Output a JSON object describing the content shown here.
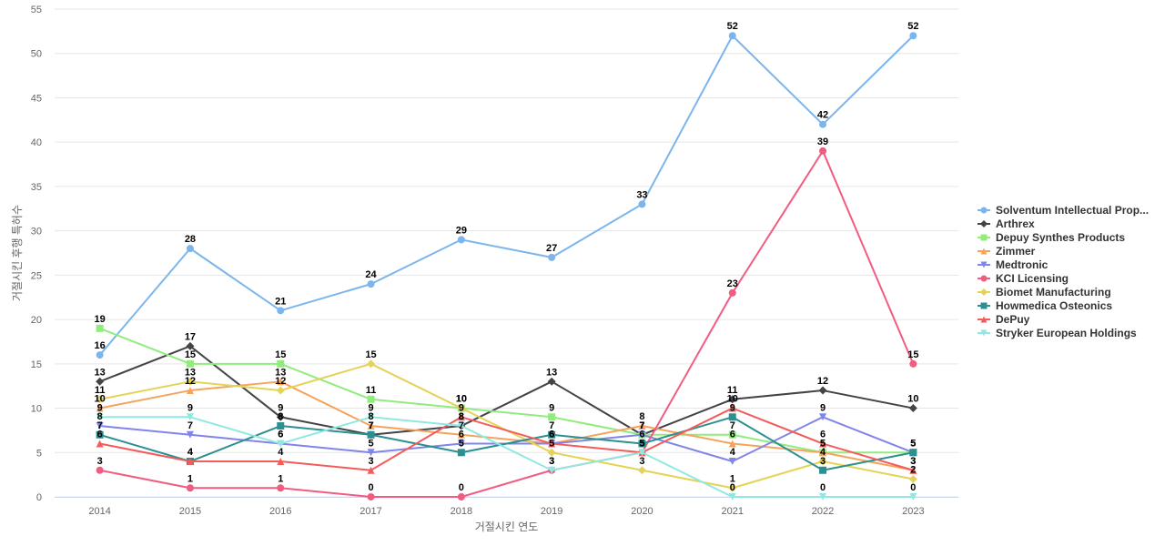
{
  "chart_data": {
    "type": "line",
    "xlabel": "거절시킨 연도",
    "ylabel": "거절시킨 후행 특허수",
    "categories": [
      "2014",
      "2015",
      "2016",
      "2017",
      "2018",
      "2019",
      "2020",
      "2021",
      "2022",
      "2023"
    ],
    "ylim": [
      0,
      55
    ],
    "yticks": [
      0,
      5,
      10,
      15,
      20,
      25,
      30,
      35,
      40,
      45,
      50,
      55
    ],
    "grid": true,
    "legend_position": "right",
    "series": [
      {
        "name": "Solventum Intellectual Prop...",
        "color": "#7cb5ec",
        "marker": "circle",
        "values": [
          16,
          28,
          21,
          24,
          29,
          27,
          33,
          52,
          42,
          52
        ]
      },
      {
        "name": "Arthrex",
        "color": "#434348",
        "marker": "diamond",
        "values": [
          13,
          17,
          9,
          7,
          8,
          13,
          7,
          11,
          12,
          10
        ]
      },
      {
        "name": "Depuy Synthes Products",
        "color": "#90ed7d",
        "marker": "square",
        "values": [
          19,
          15,
          15,
          11,
          10,
          9,
          7,
          7,
          5,
          5
        ]
      },
      {
        "name": "Zimmer",
        "color": "#f7a35c",
        "marker": "triangle",
        "values": [
          10,
          12,
          13,
          8,
          7,
          6,
          8,
          6,
          5,
          3
        ]
      },
      {
        "name": "Medtronic",
        "color": "#8085e9",
        "marker": "triangle-down",
        "values": [
          8,
          7,
          6,
          5,
          6,
          6,
          7,
          4,
          9,
          5
        ]
      },
      {
        "name": "KCI Licensing",
        "color": "#f15c80",
        "marker": "circle",
        "values": [
          3,
          1,
          1,
          0,
          0,
          3,
          5,
          23,
          39,
          15
        ]
      },
      {
        "name": "Biomet Manufacturing",
        "color": "#e4d354",
        "marker": "diamond",
        "values": [
          11,
          13,
          12,
          15,
          10,
          5,
          3,
          1,
          4,
          2
        ]
      },
      {
        "name": "Howmedica Osteonics",
        "color": "#2b908f",
        "marker": "square",
        "values": [
          7,
          4,
          8,
          7,
          5,
          7,
          6,
          9,
          3,
          5
        ]
      },
      {
        "name": "DePuy",
        "color": "#f45b5b",
        "marker": "triangle",
        "values": [
          6,
          4,
          4,
          3,
          9,
          6,
          5,
          10,
          6,
          3
        ]
      },
      {
        "name": "Stryker European Holdings",
        "color": "#91e8e1",
        "marker": "triangle-down",
        "values": [
          9,
          9,
          6,
          9,
          8,
          3,
          5,
          0,
          0,
          0
        ]
      }
    ]
  }
}
